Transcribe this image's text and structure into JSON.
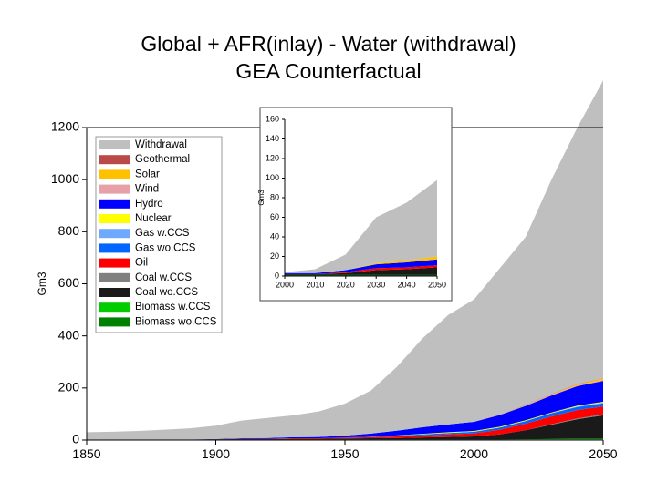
{
  "chart_data": [
    {
      "type": "area",
      "title": [
        "Global + AFR(inlay) - Water (withdrawal)",
        "GEA Counterfactual"
      ],
      "ylabel": "Gm3",
      "x": [
        1850,
        1860,
        1870,
        1880,
        1890,
        1900,
        1910,
        1920,
        1930,
        1940,
        1950,
        1960,
        1970,
        1980,
        1990,
        2000,
        2010,
        2020,
        2030,
        2040,
        2050
      ],
      "xlim": [
        1850,
        2050
      ],
      "xticks": [
        1850,
        1900,
        1950,
        2000,
        2050
      ],
      "ylim": [
        0,
        1200
      ],
      "yticks": [
        0,
        200,
        400,
        600,
        800,
        1000,
        1200
      ],
      "series": [
        {
          "name": "Withdrawal",
          "color": "#bfbfbf",
          "values": [
            28,
            30,
            33,
            38,
            43,
            51,
            68,
            77,
            84,
            98,
            123,
            165,
            244,
            341,
            420,
            470,
            562,
            645,
            823,
            985,
            1144
          ]
        },
        {
          "name": "Geothermal",
          "color": "#b94a48",
          "values": [
            0,
            0,
            0,
            0,
            0,
            0,
            0,
            0,
            0,
            0,
            0,
            0,
            0,
            0,
            0,
            0,
            1,
            1,
            1,
            1,
            1
          ]
        },
        {
          "name": "Solar",
          "color": "#ffc000",
          "values": [
            0,
            0,
            0,
            0,
            0,
            0,
            0,
            0,
            0,
            0,
            0,
            0,
            0,
            0,
            0,
            0,
            0,
            1,
            2,
            4,
            6
          ]
        },
        {
          "name": "Wind",
          "color": "#e6a0a8",
          "values": [
            0,
            0,
            0,
            0,
            0,
            0,
            0,
            0,
            0,
            0,
            0,
            0,
            0,
            0,
            0,
            0,
            1,
            2,
            3,
            3,
            3
          ]
        },
        {
          "name": "Hydro",
          "color": "#0000ff",
          "values": [
            0,
            0,
            0,
            0,
            0,
            1,
            2,
            3,
            4,
            5,
            7,
            12,
            18,
            25,
            30,
            35,
            45,
            55,
            65,
            75,
            80
          ]
        },
        {
          "name": "Nuclear",
          "color": "#ffff00",
          "values": [
            0,
            0,
            0,
            0,
            0,
            0,
            0,
            0,
            0,
            0,
            0,
            0,
            1,
            2,
            3,
            3,
            3,
            3,
            3,
            3,
            3
          ]
        },
        {
          "name": "Gas w.CCS",
          "color": "#6fa8ff",
          "values": [
            0,
            0,
            0,
            0,
            0,
            0,
            0,
            0,
            0,
            0,
            0,
            0,
            0,
            0,
            0,
            0,
            0,
            0,
            0,
            2,
            3
          ]
        },
        {
          "name": "Gas wo.CCS",
          "color": "#0066ff",
          "values": [
            0,
            0,
            0,
            0,
            0,
            0,
            0,
            0,
            0,
            0,
            1,
            2,
            3,
            4,
            5,
            6,
            8,
            10,
            12,
            12,
            12
          ]
        },
        {
          "name": "Oil",
          "color": "#ff0000",
          "values": [
            0,
            0,
            0,
            0,
            0,
            0,
            1,
            1,
            2,
            2,
            3,
            4,
            6,
            8,
            10,
            12,
            18,
            25,
            30,
            32,
            30
          ]
        },
        {
          "name": "Coal w.CCS",
          "color": "#808080",
          "values": [
            0,
            0,
            0,
            0,
            0,
            0,
            0,
            0,
            0,
            0,
            0,
            0,
            0,
            0,
            0,
            0,
            0,
            0,
            2,
            3,
            4
          ]
        },
        {
          "name": "Coal wo.CCS",
          "color": "#1a1a1a",
          "values": [
            0,
            0,
            0,
            0,
            0,
            1,
            2,
            2,
            3,
            3,
            4,
            5,
            6,
            8,
            10,
            12,
            20,
            35,
            55,
            75,
            90
          ]
        },
        {
          "name": "Biomass w.CCS",
          "color": "#00cc00",
          "values": [
            0,
            0,
            0,
            0,
            0,
            0,
            0,
            0,
            0,
            0,
            0,
            0,
            0,
            0,
            0,
            0,
            0,
            1,
            2,
            3,
            3
          ]
        },
        {
          "name": "Biomass wo.CCS",
          "color": "#008000",
          "values": [
            2,
            2,
            2,
            2,
            2,
            2,
            2,
            2,
            2,
            2,
            2,
            2,
            2,
            2,
            2,
            2,
            2,
            2,
            2,
            2,
            2
          ]
        }
      ]
    },
    {
      "type": "area",
      "ylabel": "Gm3",
      "x": [
        2000,
        2010,
        2020,
        2030,
        2040,
        2050
      ],
      "xlim": [
        2000,
        2050
      ],
      "xticks": [
        2000,
        2010,
        2020,
        2030,
        2040,
        2050
      ],
      "ylim": [
        0,
        160
      ],
      "yticks": [
        0,
        20,
        40,
        60,
        80,
        100,
        120,
        140,
        160
      ],
      "series": [
        {
          "color": "#bfbfbf",
          "values": [
            1,
            4,
            16,
            47,
            59,
            78
          ]
        },
        {
          "color": "#ffc000",
          "values": [
            0,
            0,
            0,
            1,
            2,
            3
          ]
        },
        {
          "color": "#0000ff",
          "values": [
            1,
            1,
            2,
            4,
            5,
            6
          ]
        },
        {
          "color": "#ff0000",
          "values": [
            0,
            0,
            1,
            2,
            2,
            2
          ]
        },
        {
          "color": "#1a1a1a",
          "values": [
            1,
            1,
            2,
            5,
            6,
            8
          ]
        },
        {
          "color": "#008000",
          "values": [
            1,
            1,
            1,
            1,
            1,
            1
          ]
        }
      ]
    }
  ]
}
